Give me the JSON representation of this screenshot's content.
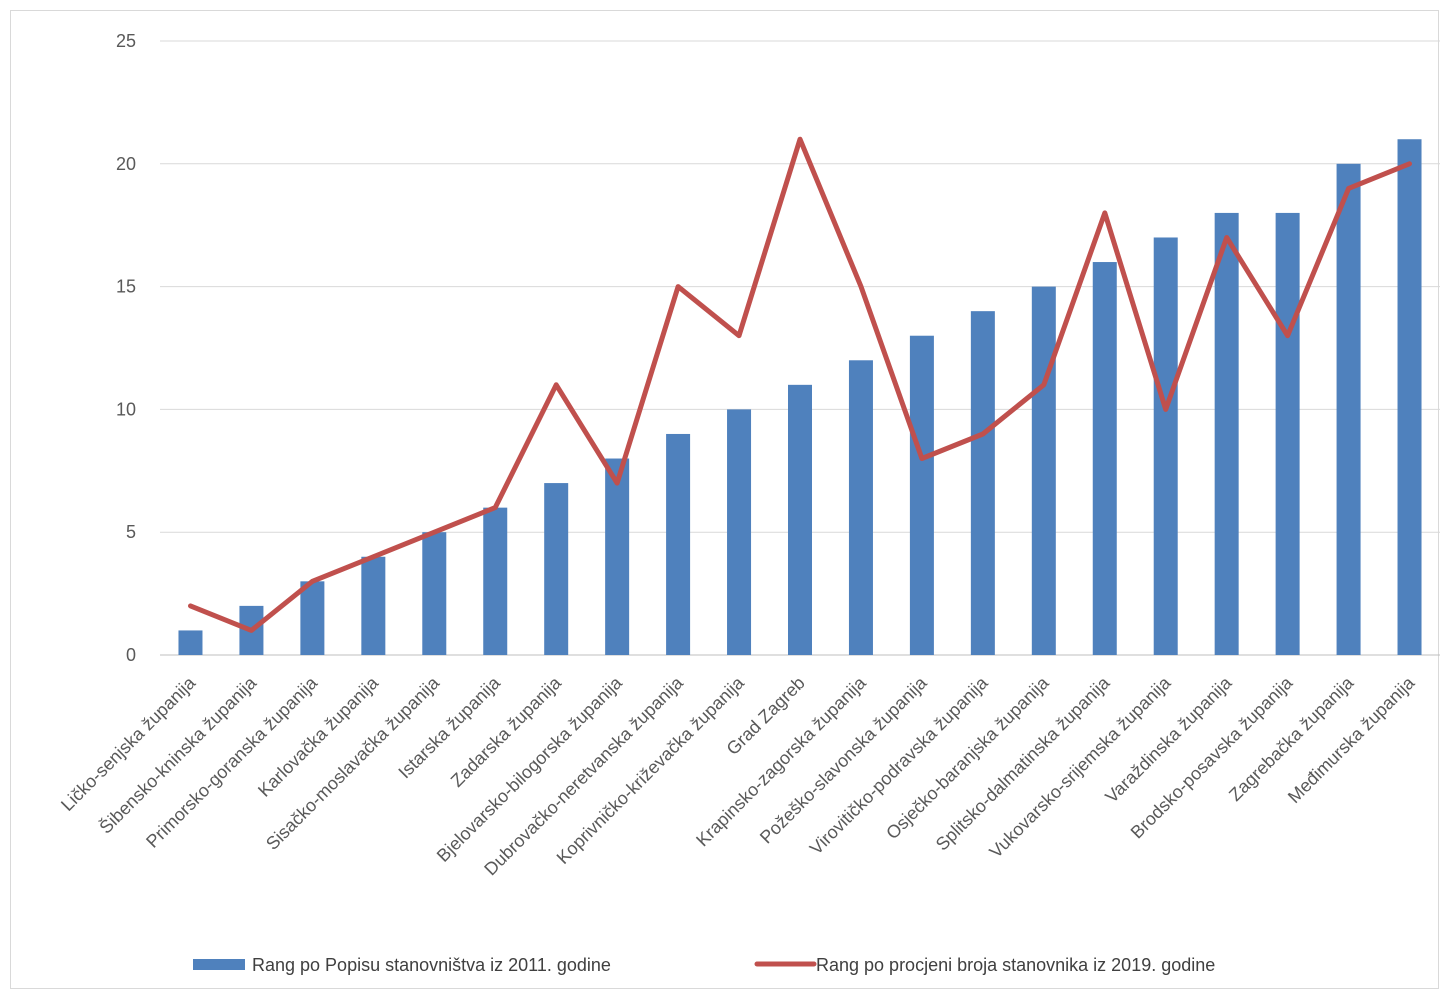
{
  "chart_data": {
    "type": "bar",
    "title": "",
    "xlabel": "",
    "ylabel": "",
    "ylim": [
      0,
      25
    ],
    "yticks": [
      0,
      5,
      10,
      15,
      20,
      25
    ],
    "grid": true,
    "legend_position": "bottom",
    "categories": [
      "Ličko-senjska županija",
      "Šibensko-kninska županija",
      "Primorsko-goranska županija",
      "Karlovačka županija",
      "Sisačko-moslavačka županija",
      "Istarska županija",
      "Zadarska županija",
      "Bjelovarsko-bilogorska županija",
      "Dubrovačko-neretvanska županija",
      "Koprivničko-križevačka županija",
      "Grad Zagreb",
      "Krapinsko-zagorska županija",
      "Požeško-slavonska županija",
      "Virovitičko-podravska županija",
      "Osječko-baranjska županija",
      "Splitsko-dalmatinska županija",
      "Vukovarsko-srijemska županija",
      "Varaždinska županija",
      "Brodsko-posavska županija",
      "Zagrebačka županija",
      "Međimurska županija"
    ],
    "series": [
      {
        "name": "Rang po Popisu stanovništva iz 2011. godine",
        "type": "bar",
        "color": "#4f81bd",
        "values": [
          1,
          2,
          3,
          4,
          5,
          6,
          7,
          8,
          9,
          10,
          11,
          12,
          13,
          14,
          15,
          16,
          17,
          18,
          18,
          20,
          21
        ]
      },
      {
        "name": "Rang po procjeni broja stanovnika iz 2019. godine",
        "type": "line",
        "color": "#c0504d",
        "values": [
          2,
          1,
          3,
          4,
          5,
          6,
          11,
          7,
          15,
          13,
          21,
          15,
          8,
          9,
          11,
          18,
          10,
          17,
          13,
          19,
          20
        ]
      }
    ]
  }
}
